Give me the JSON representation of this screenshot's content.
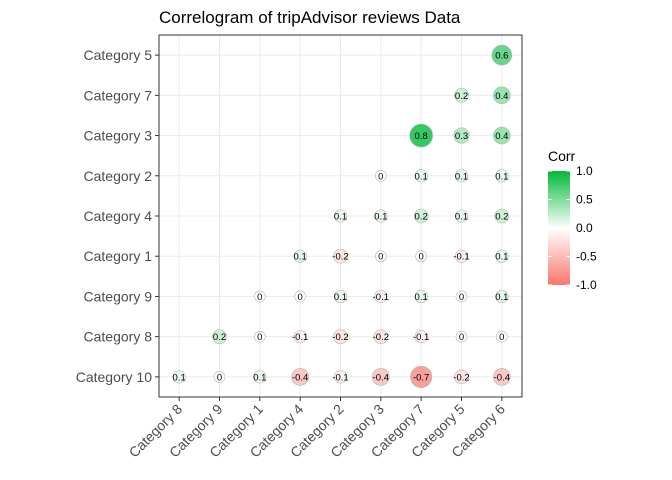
{
  "chart_data": {
    "type": "correlogram",
    "title": "Correlogram of tripAdvisor reviews Data",
    "x_categories": [
      "Category 8",
      "Category 9",
      "Category 1",
      "Category 4",
      "Category 2",
      "Category 3",
      "Category 7",
      "Category 5",
      "Category 6"
    ],
    "y_categories": [
      "Category 10",
      "Category 8",
      "Category 9",
      "Category 1",
      "Category 4",
      "Category 2",
      "Category 3",
      "Category 7",
      "Category 5"
    ],
    "cells": [
      {
        "x": "Category 8",
        "y": "Category 10",
        "value": 0.1,
        "label": "0.1"
      },
      {
        "x": "Category 9",
        "y": "Category 10",
        "value": 0.0,
        "label": "0"
      },
      {
        "x": "Category 1",
        "y": "Category 10",
        "value": 0.1,
        "label": "0.1"
      },
      {
        "x": "Category 4",
        "y": "Category 10",
        "value": -0.4,
        "label": "-0.4"
      },
      {
        "x": "Category 2",
        "y": "Category 10",
        "value": -0.1,
        "label": "-0.1"
      },
      {
        "x": "Category 3",
        "y": "Category 10",
        "value": -0.4,
        "label": "-0.4"
      },
      {
        "x": "Category 7",
        "y": "Category 10",
        "value": -0.7,
        "label": "-0.7"
      },
      {
        "x": "Category 5",
        "y": "Category 10",
        "value": -0.2,
        "label": "-0.2"
      },
      {
        "x": "Category 6",
        "y": "Category 10",
        "value": -0.4,
        "label": "-0.4"
      },
      {
        "x": "Category 9",
        "y": "Category 8",
        "value": 0.2,
        "label": "0.2"
      },
      {
        "x": "Category 1",
        "y": "Category 8",
        "value": 0.0,
        "label": "0"
      },
      {
        "x": "Category 4",
        "y": "Category 8",
        "value": -0.1,
        "label": "-0.1"
      },
      {
        "x": "Category 2",
        "y": "Category 8",
        "value": -0.2,
        "label": "-0.2"
      },
      {
        "x": "Category 3",
        "y": "Category 8",
        "value": -0.2,
        "label": "-0.2"
      },
      {
        "x": "Category 7",
        "y": "Category 8",
        "value": -0.1,
        "label": "-0.1"
      },
      {
        "x": "Category 5",
        "y": "Category 8",
        "value": 0.0,
        "label": "0"
      },
      {
        "x": "Category 6",
        "y": "Category 8",
        "value": 0.0,
        "label": "0"
      },
      {
        "x": "Category 1",
        "y": "Category 9",
        "value": 0.0,
        "label": "0"
      },
      {
        "x": "Category 4",
        "y": "Category 9",
        "value": 0.0,
        "label": "0"
      },
      {
        "x": "Category 2",
        "y": "Category 9",
        "value": 0.1,
        "label": "0.1"
      },
      {
        "x": "Category 3",
        "y": "Category 9",
        "value": -0.1,
        "label": "-0.1"
      },
      {
        "x": "Category 7",
        "y": "Category 9",
        "value": 0.1,
        "label": "0.1"
      },
      {
        "x": "Category 5",
        "y": "Category 9",
        "value": 0.0,
        "label": "0"
      },
      {
        "x": "Category 6",
        "y": "Category 9",
        "value": 0.1,
        "label": "0.1"
      },
      {
        "x": "Category 4",
        "y": "Category 1",
        "value": 0.1,
        "label": "0.1"
      },
      {
        "x": "Category 2",
        "y": "Category 1",
        "value": -0.2,
        "label": "-0.2"
      },
      {
        "x": "Category 3",
        "y": "Category 1",
        "value": 0.0,
        "label": "0"
      },
      {
        "x": "Category 7",
        "y": "Category 1",
        "value": 0.0,
        "label": "0"
      },
      {
        "x": "Category 5",
        "y": "Category 1",
        "value": -0.1,
        "label": "-0.1"
      },
      {
        "x": "Category 6",
        "y": "Category 1",
        "value": 0.1,
        "label": "0.1"
      },
      {
        "x": "Category 2",
        "y": "Category 4",
        "value": 0.1,
        "label": "0.1"
      },
      {
        "x": "Category 3",
        "y": "Category 4",
        "value": 0.1,
        "label": "0.1"
      },
      {
        "x": "Category 7",
        "y": "Category 4",
        "value": 0.2,
        "label": "0.2"
      },
      {
        "x": "Category 5",
        "y": "Category 4",
        "value": 0.1,
        "label": "0.1"
      },
      {
        "x": "Category 6",
        "y": "Category 4",
        "value": 0.2,
        "label": "0.2"
      },
      {
        "x": "Category 3",
        "y": "Category 2",
        "value": 0.0,
        "label": "0"
      },
      {
        "x": "Category 7",
        "y": "Category 2",
        "value": 0.1,
        "label": "0.1"
      },
      {
        "x": "Category 5",
        "y": "Category 2",
        "value": 0.1,
        "label": "0.1"
      },
      {
        "x": "Category 6",
        "y": "Category 2",
        "value": 0.1,
        "label": "0.1"
      },
      {
        "x": "Category 7",
        "y": "Category 3",
        "value": 0.8,
        "label": "0.8"
      },
      {
        "x": "Category 5",
        "y": "Category 3",
        "value": 0.3,
        "label": "0.3"
      },
      {
        "x": "Category 6",
        "y": "Category 3",
        "value": 0.4,
        "label": "0.4"
      },
      {
        "x": "Category 5",
        "y": "Category 7",
        "value": 0.2,
        "label": "0.2"
      },
      {
        "x": "Category 6",
        "y": "Category 7",
        "value": 0.4,
        "label": "0.4"
      },
      {
        "x": "Category 6",
        "y": "Category 5",
        "value": 0.6,
        "label": "0.6"
      }
    ],
    "legend": {
      "title": "Corr",
      "ticks": [
        1.0,
        0.5,
        0.0,
        -0.5,
        -1.0
      ],
      "tick_labels": [
        "1.0",
        "0.5",
        "0.0",
        "-0.5",
        "-1.0"
      ],
      "range": [
        -1,
        1
      ],
      "colors": {
        "low": "#F8766D",
        "mid": "#FFFFFF",
        "high": "#00BA38"
      },
      "position": "right"
    },
    "grid": true
  }
}
